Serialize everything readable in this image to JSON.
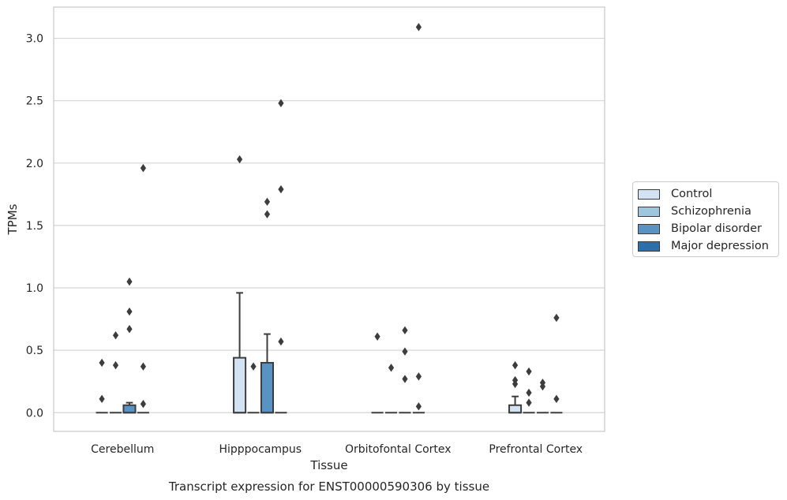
{
  "chart_data": {
    "type": "box",
    "title": "Transcript expression for ENST00000590306 by tissue",
    "xlabel": "Tissue",
    "ylabel": "TPMs",
    "categories": [
      "Cerebellum",
      "Hipppocampus",
      "Orbitofontal Cortex",
      "Prefrontal Cortex"
    ],
    "ylim": [
      -0.15,
      3.25
    ],
    "yticks": [
      "0.0",
      "0.5",
      "1.0",
      "1.5",
      "2.0",
      "2.5",
      "3.0"
    ],
    "grid": true,
    "legend_position": "right",
    "series": [
      {
        "name": "Control",
        "color": "#d4e3f3",
        "boxes": [
          {
            "q1": 0,
            "median": 0,
            "q3": 0,
            "whisker_low": 0,
            "whisker_high": 0,
            "outliers": [
              0.4,
              0.11
            ]
          },
          {
            "q1": 0,
            "median": 0,
            "q3": 0.44,
            "whisker_low": 0,
            "whisker_high": 0.96,
            "outliers": [
              2.03
            ]
          },
          {
            "q1": 0,
            "median": 0,
            "q3": 0,
            "whisker_low": 0,
            "whisker_high": 0,
            "outliers": [
              0.61
            ]
          },
          {
            "q1": 0,
            "median": 0,
            "q3": 0.06,
            "whisker_low": 0,
            "whisker_high": 0.13,
            "outliers": [
              0.38,
              0.26,
              0.23
            ]
          }
        ]
      },
      {
        "name": "Schizophrenia",
        "color": "#9ec6dd",
        "boxes": [
          {
            "q1": 0,
            "median": 0,
            "q3": 0,
            "whisker_low": 0,
            "whisker_high": 0,
            "outliers": [
              0.62,
              0.38
            ]
          },
          {
            "q1": 0,
            "median": 0,
            "q3": 0,
            "whisker_low": 0,
            "whisker_high": 0,
            "outliers": [
              0.37
            ]
          },
          {
            "q1": 0,
            "median": 0,
            "q3": 0,
            "whisker_low": 0,
            "whisker_high": 0,
            "outliers": [
              0.36
            ]
          },
          {
            "q1": 0,
            "median": 0,
            "q3": 0,
            "whisker_low": 0,
            "whisker_high": 0,
            "outliers": [
              0.33,
              0.16,
              0.08
            ]
          }
        ]
      },
      {
        "name": "Bipolar disorder",
        "color": "#5993c4",
        "boxes": [
          {
            "q1": 0,
            "median": 0,
            "q3": 0.06,
            "whisker_low": 0,
            "whisker_high": 0.08,
            "outliers": [
              1.05,
              0.81,
              0.67
            ]
          },
          {
            "q1": 0,
            "median": 0,
            "q3": 0.4,
            "whisker_low": 0,
            "whisker_high": 0.63,
            "outliers": [
              1.69,
              1.59
            ]
          },
          {
            "q1": 0,
            "median": 0,
            "q3": 0,
            "whisker_low": 0,
            "whisker_high": 0,
            "outliers": [
              0.66,
              0.49,
              0.27
            ]
          },
          {
            "q1": 0,
            "median": 0,
            "q3": 0,
            "whisker_low": 0,
            "whisker_high": 0,
            "outliers": [
              0.24,
              0.21
            ]
          }
        ]
      },
      {
        "name": "Major depression",
        "color": "#2c6fad",
        "boxes": [
          {
            "q1": 0,
            "median": 0,
            "q3": 0,
            "whisker_low": 0,
            "whisker_high": 0,
            "outliers": [
              1.96,
              0.37,
              0.07
            ]
          },
          {
            "q1": 0,
            "median": 0,
            "q3": 0,
            "whisker_low": 0,
            "whisker_high": 0,
            "outliers": [
              2.48,
              1.79,
              0.57
            ]
          },
          {
            "q1": 0,
            "median": 0,
            "q3": 0,
            "whisker_low": 0,
            "whisker_high": 0,
            "outliers": [
              3.09,
              0.29,
              0.05
            ]
          },
          {
            "q1": 0,
            "median": 0,
            "q3": 0,
            "whisker_low": 0,
            "whisker_high": 0,
            "outliers": [
              0.76,
              0.11
            ]
          }
        ]
      }
    ]
  }
}
